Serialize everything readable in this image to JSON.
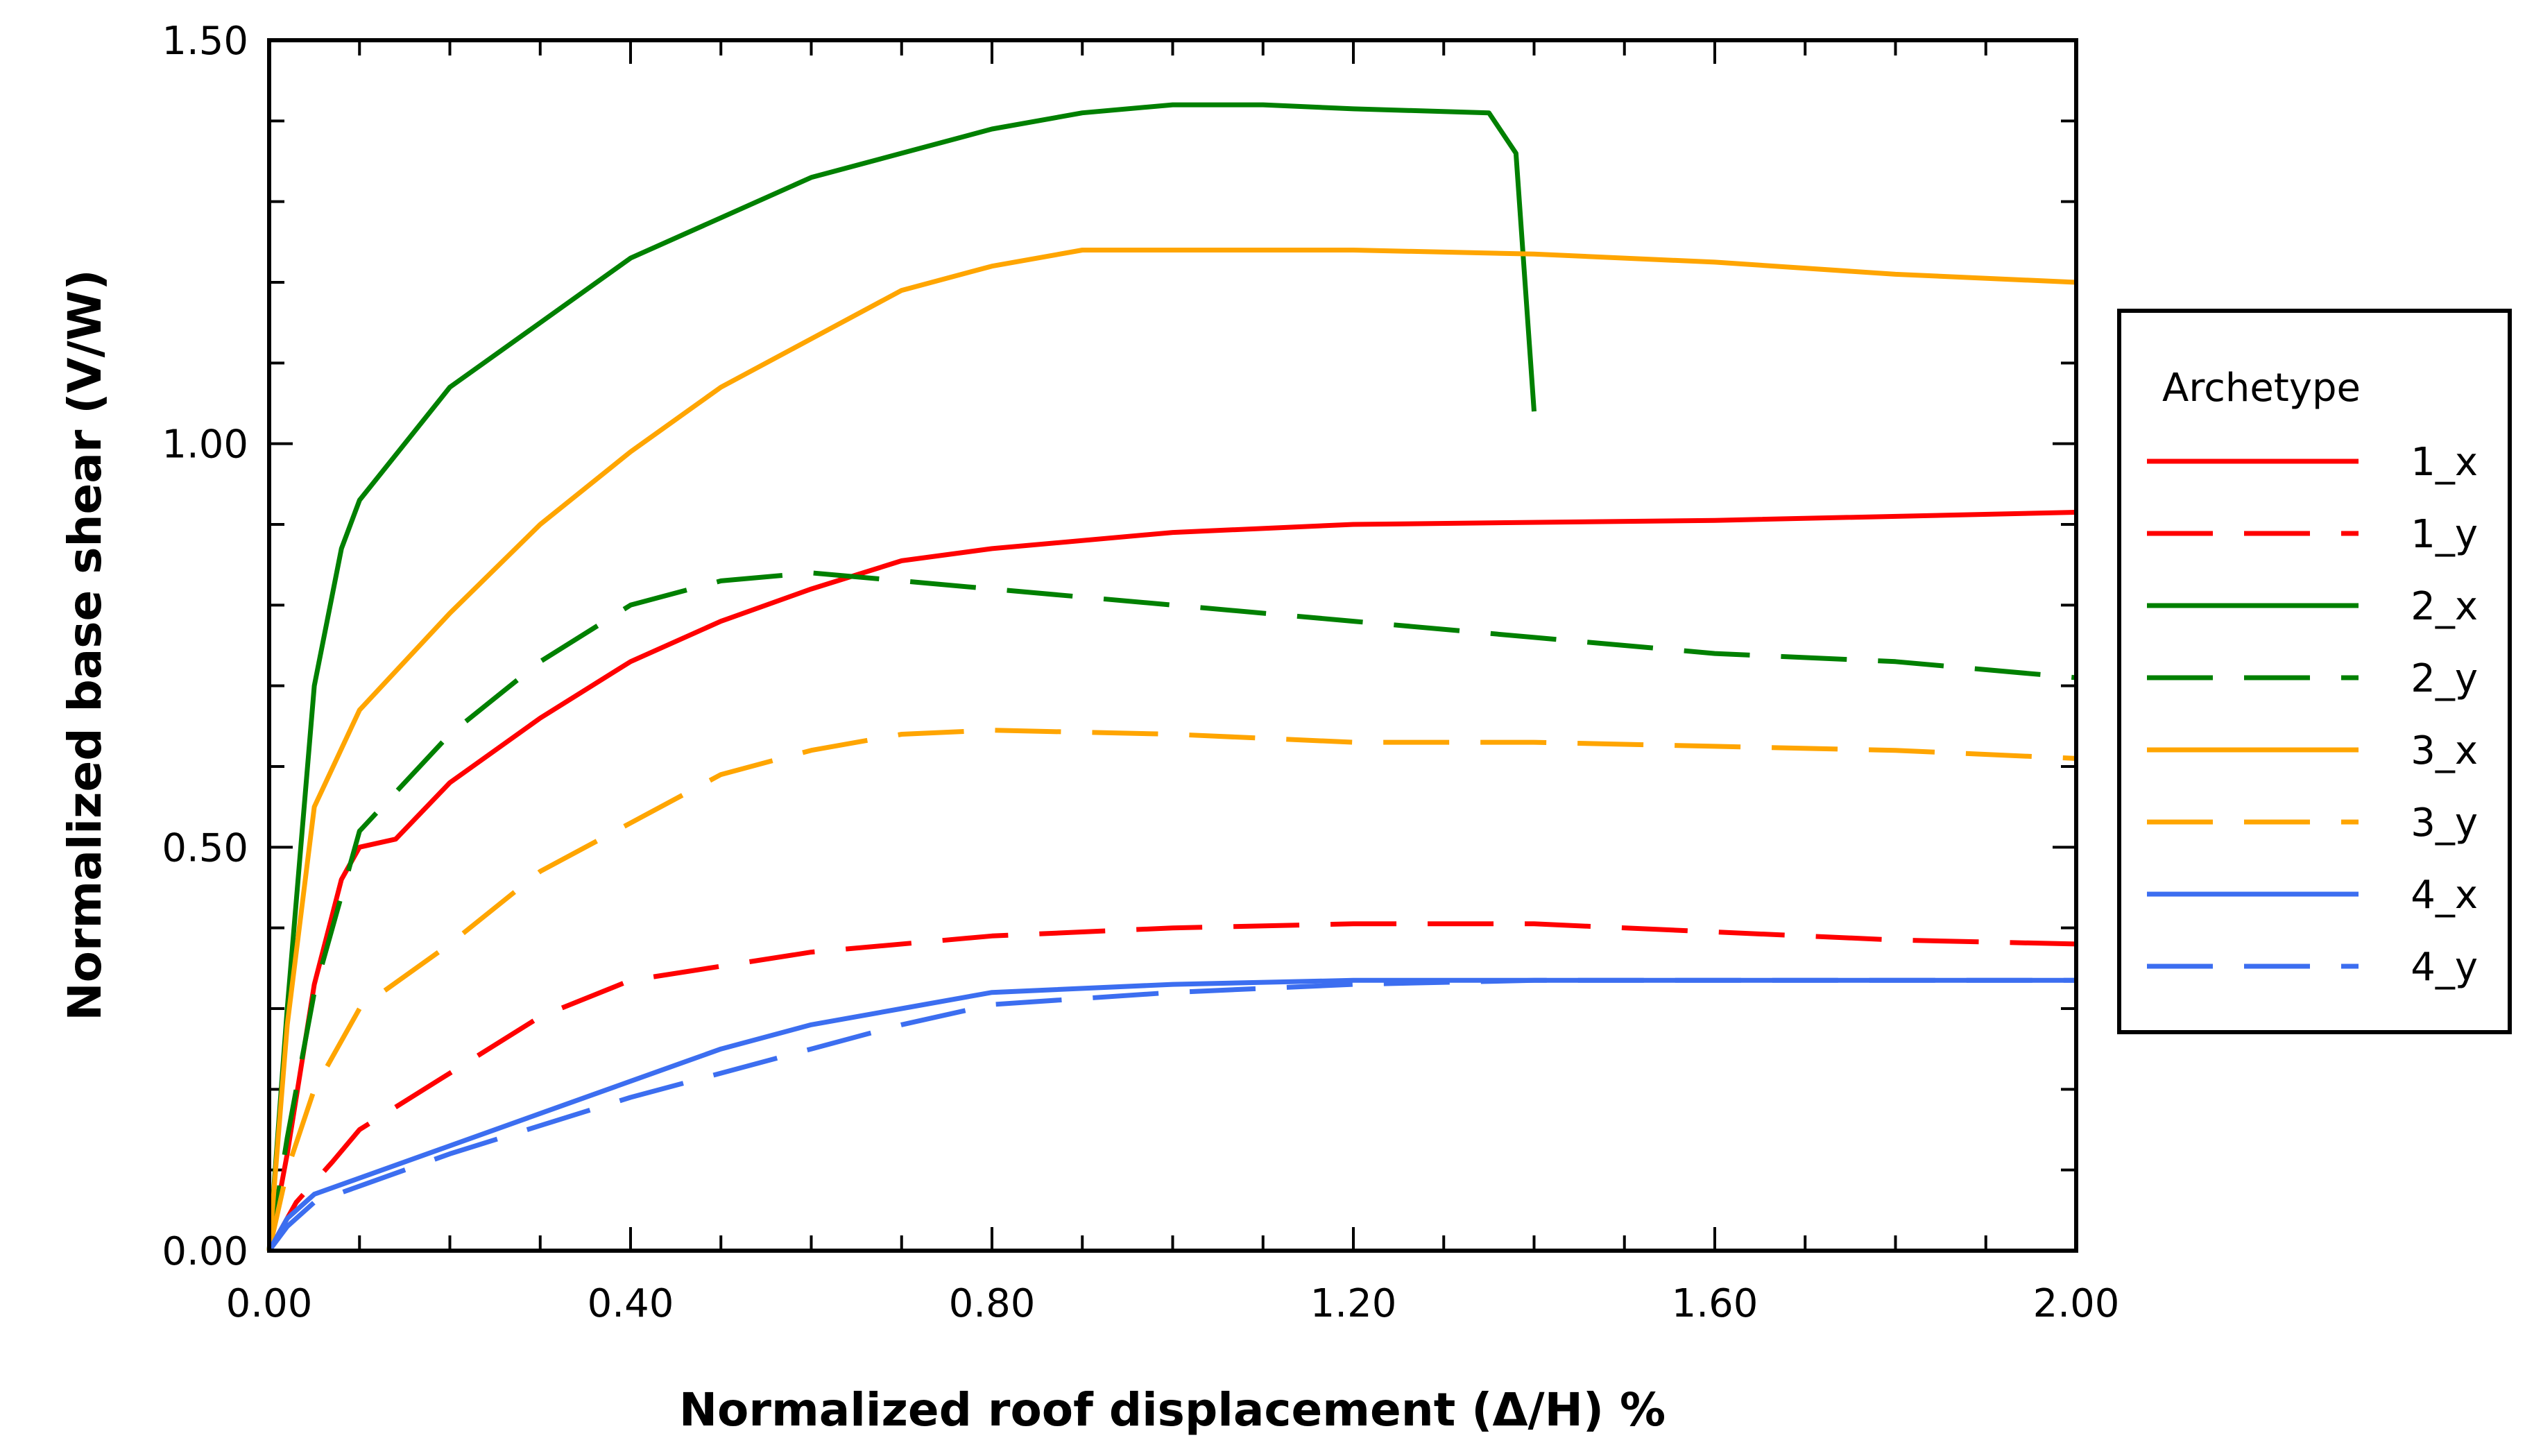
{
  "chart_data": {
    "type": "line",
    "title": "",
    "xlabel": "Normalized roof displacement (Δ/H) %",
    "ylabel": "Normalized base shear (V/W)",
    "xlim": [
      0,
      2.0
    ],
    "ylim": [
      0,
      1.5
    ],
    "x_ticks": [
      "0.00",
      "0.40",
      "0.80",
      "1.20",
      "1.60",
      "2.00"
    ],
    "y_ticks": [
      "0.00",
      "0.50",
      "1.00",
      "1.50"
    ],
    "x_tick_values": [
      0,
      0.4,
      0.8,
      1.2,
      1.6,
      2.0
    ],
    "y_tick_values": [
      0,
      0.5,
      1.0,
      1.5
    ],
    "legend": {
      "title": "Archetype",
      "position": "right"
    },
    "series": [
      {
        "name": "1_x",
        "color": "#ff0000",
        "dash": "solid",
        "points": [
          [
            0,
            0
          ],
          [
            0.02,
            0.12
          ],
          [
            0.05,
            0.33
          ],
          [
            0.08,
            0.46
          ],
          [
            0.1,
            0.5
          ],
          [
            0.14,
            0.51
          ],
          [
            0.2,
            0.58
          ],
          [
            0.3,
            0.66
          ],
          [
            0.4,
            0.73
          ],
          [
            0.5,
            0.78
          ],
          [
            0.6,
            0.82
          ],
          [
            0.7,
            0.855
          ],
          [
            0.8,
            0.87
          ],
          [
            1.0,
            0.89
          ],
          [
            1.2,
            0.9
          ],
          [
            1.6,
            0.905
          ],
          [
            2.0,
            0.915
          ]
        ]
      },
      {
        "name": "1_y",
        "color": "#ff0000",
        "dash": "dashed",
        "points": [
          [
            0,
            0
          ],
          [
            0.03,
            0.06
          ],
          [
            0.07,
            0.11
          ],
          [
            0.1,
            0.15
          ],
          [
            0.2,
            0.22
          ],
          [
            0.3,
            0.29
          ],
          [
            0.4,
            0.335
          ],
          [
            0.6,
            0.37
          ],
          [
            0.8,
            0.39
          ],
          [
            1.0,
            0.4
          ],
          [
            1.2,
            0.405
          ],
          [
            1.4,
            0.405
          ],
          [
            1.6,
            0.395
          ],
          [
            1.8,
            0.385
          ],
          [
            2.0,
            0.38
          ]
        ]
      },
      {
        "name": "2_x",
        "color": "#008000",
        "dash": "solid",
        "points": [
          [
            0,
            0
          ],
          [
            0.02,
            0.3
          ],
          [
            0.05,
            0.7
          ],
          [
            0.08,
            0.87
          ],
          [
            0.1,
            0.93
          ],
          [
            0.15,
            1.0
          ],
          [
            0.2,
            1.07
          ],
          [
            0.3,
            1.15
          ],
          [
            0.4,
            1.23
          ],
          [
            0.5,
            1.28
          ],
          [
            0.6,
            1.33
          ],
          [
            0.7,
            1.36
          ],
          [
            0.8,
            1.39
          ],
          [
            0.9,
            1.41
          ],
          [
            1.0,
            1.42
          ],
          [
            1.1,
            1.42
          ],
          [
            1.2,
            1.415
          ],
          [
            1.35,
            1.41
          ],
          [
            1.38,
            1.36
          ],
          [
            1.4,
            1.04
          ]
        ]
      },
      {
        "name": "2_y",
        "color": "#008000",
        "dash": "dashed",
        "points": [
          [
            0,
            0
          ],
          [
            0.02,
            0.14
          ],
          [
            0.05,
            0.32
          ],
          [
            0.1,
            0.52
          ],
          [
            0.2,
            0.64
          ],
          [
            0.3,
            0.73
          ],
          [
            0.4,
            0.8
          ],
          [
            0.5,
            0.83
          ],
          [
            0.6,
            0.84
          ],
          [
            0.7,
            0.83
          ],
          [
            0.8,
            0.82
          ],
          [
            1.0,
            0.8
          ],
          [
            1.2,
            0.78
          ],
          [
            1.4,
            0.76
          ],
          [
            1.6,
            0.74
          ],
          [
            1.8,
            0.73
          ],
          [
            2.0,
            0.71
          ]
        ]
      },
      {
        "name": "3_x",
        "color": "#ffa500",
        "dash": "solid",
        "points": [
          [
            0,
            0
          ],
          [
            0.02,
            0.28
          ],
          [
            0.05,
            0.55
          ],
          [
            0.1,
            0.67
          ],
          [
            0.15,
            0.73
          ],
          [
            0.2,
            0.79
          ],
          [
            0.3,
            0.9
          ],
          [
            0.4,
            0.99
          ],
          [
            0.5,
            1.07
          ],
          [
            0.6,
            1.13
          ],
          [
            0.7,
            1.19
          ],
          [
            0.8,
            1.22
          ],
          [
            0.9,
            1.24
          ],
          [
            1.0,
            1.24
          ],
          [
            1.2,
            1.24
          ],
          [
            1.4,
            1.235
          ],
          [
            1.6,
            1.225
          ],
          [
            1.8,
            1.21
          ],
          [
            2.0,
            1.2
          ]
        ]
      },
      {
        "name": "3_y",
        "color": "#ffa500",
        "dash": "dashed",
        "points": [
          [
            0,
            0
          ],
          [
            0.02,
            0.1
          ],
          [
            0.05,
            0.2
          ],
          [
            0.1,
            0.3
          ],
          [
            0.2,
            0.38
          ],
          [
            0.3,
            0.47
          ],
          [
            0.4,
            0.53
          ],
          [
            0.5,
            0.59
          ],
          [
            0.6,
            0.62
          ],
          [
            0.7,
            0.64
          ],
          [
            0.8,
            0.645
          ],
          [
            1.0,
            0.64
          ],
          [
            1.2,
            0.63
          ],
          [
            1.4,
            0.63
          ],
          [
            1.6,
            0.625
          ],
          [
            1.8,
            0.62
          ],
          [
            2.0,
            0.61
          ]
        ]
      },
      {
        "name": "4_x",
        "color": "#3c6ef0",
        "dash": "solid",
        "points": [
          [
            0,
            0
          ],
          [
            0.02,
            0.04
          ],
          [
            0.05,
            0.07
          ],
          [
            0.1,
            0.09
          ],
          [
            0.2,
            0.13
          ],
          [
            0.3,
            0.17
          ],
          [
            0.4,
            0.21
          ],
          [
            0.5,
            0.25
          ],
          [
            0.6,
            0.28
          ],
          [
            0.7,
            0.3
          ],
          [
            0.8,
            0.32
          ],
          [
            1.0,
            0.33
          ],
          [
            1.2,
            0.335
          ],
          [
            1.4,
            0.335
          ],
          [
            1.6,
            0.335
          ],
          [
            1.8,
            0.335
          ],
          [
            2.0,
            0.335
          ]
        ]
      },
      {
        "name": "4_y",
        "color": "#3c6ef0",
        "dash": "dashed",
        "points": [
          [
            0,
            0
          ],
          [
            0.02,
            0.03
          ],
          [
            0.05,
            0.06
          ],
          [
            0.1,
            0.08
          ],
          [
            0.2,
            0.12
          ],
          [
            0.3,
            0.155
          ],
          [
            0.4,
            0.19
          ],
          [
            0.5,
            0.22
          ],
          [
            0.6,
            0.25
          ],
          [
            0.7,
            0.28
          ],
          [
            0.8,
            0.305
          ],
          [
            1.0,
            0.32
          ],
          [
            1.2,
            0.33
          ],
          [
            1.4,
            0.335
          ],
          [
            1.6,
            0.335
          ],
          [
            1.8,
            0.335
          ],
          [
            2.0,
            0.335
          ]
        ]
      }
    ]
  }
}
